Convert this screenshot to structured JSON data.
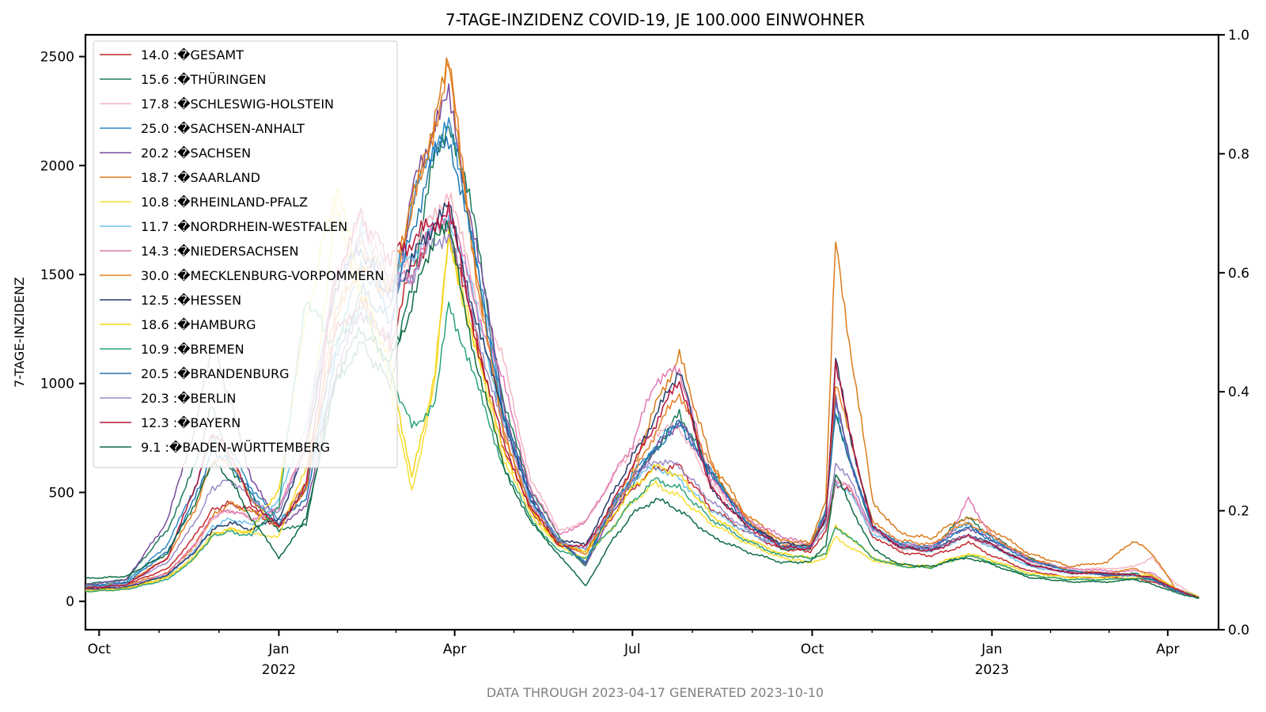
{
  "chart_data": {
    "type": "line",
    "title": "7-TAGE-INZIDENZ COVID-19, JE 100.000 EINWOHNER",
    "ylabel": "7-TAGE-INZIDENZ",
    "footer": "DATA THROUGH 2023-04-17 GENERATED 2023-10-10",
    "ylim": [
      -130,
      2600
    ],
    "xlim": [
      "2021-09-24",
      "2023-04-27"
    ],
    "y_ticks": [
      0,
      500,
      1000,
      1500,
      2000,
      2500
    ],
    "y2lim": [
      0,
      1
    ],
    "y2_ticks": [
      "0.0",
      "0.2",
      "0.4",
      "0.6",
      "0.8",
      "1.0"
    ],
    "x_ticks": [
      {
        "date": "2021-10-01",
        "label": "Oct",
        "sub": ""
      },
      {
        "date": "2022-01-01",
        "label": "Jan",
        "sub": "2022"
      },
      {
        "date": "2022-04-01",
        "label": "Apr",
        "sub": ""
      },
      {
        "date": "2022-07-01",
        "label": "Jul",
        "sub": ""
      },
      {
        "date": "2022-10-01",
        "label": "Oct",
        "sub": ""
      },
      {
        "date": "2023-01-01",
        "label": "Jan",
        "sub": "2023"
      },
      {
        "date": "2023-04-01",
        "label": "Apr",
        "sub": ""
      }
    ],
    "legend_position": "top-left",
    "grid": false,
    "shared_x": [
      "2021-09-24",
      "2021-10-15",
      "2021-11-05",
      "2021-11-19",
      "2021-11-28",
      "2021-12-07",
      "2021-12-18",
      "2022-01-01",
      "2022-01-15",
      "2022-01-30",
      "2022-02-12",
      "2022-02-27",
      "2022-03-10",
      "2022-03-22",
      "2022-03-29",
      "2022-04-12",
      "2022-04-26",
      "2022-05-10",
      "2022-05-24",
      "2022-06-07",
      "2022-06-20",
      "2022-07-01",
      "2022-07-13",
      "2022-07-25",
      "2022-08-10",
      "2022-08-28",
      "2022-09-15",
      "2022-09-30",
      "2022-10-08",
      "2022-10-13",
      "2022-10-20",
      "2022-11-01",
      "2022-11-15",
      "2022-12-01",
      "2022-12-12",
      "2022-12-20",
      "2023-01-01",
      "2023-01-20",
      "2023-02-10",
      "2023-03-01",
      "2023-03-15",
      "2023-03-24",
      "2023-04-05",
      "2023-04-17"
    ],
    "series": [
      {
        "name": "14.0 :�GESAMT",
        "color": "#c1272d",
        "values": [
          65,
          78,
          150,
          300,
          420,
          450,
          420,
          340,
          520,
          1230,
          1380,
          1170,
          1540,
          1690,
          1750,
          1200,
          700,
          420,
          260,
          230,
          380,
          520,
          610,
          620,
          430,
          320,
          240,
          230,
          320,
          540,
          520,
          300,
          225,
          210,
          240,
          270,
          210,
          140,
          110,
          110,
          105,
          90,
          50,
          15
        ]
      },
      {
        "name": "15.6 :�THÜRINGEN",
        "color": "#1b7a5a",
        "values": [
          80,
          100,
          330,
          620,
          900,
          620,
          480,
          320,
          360,
          1010,
          1180,
          1000,
          1460,
          2050,
          2220,
          1700,
          900,
          520,
          300,
          160,
          450,
          540,
          700,
          860,
          600,
          380,
          240,
          240,
          400,
          880,
          640,
          340,
          250,
          230,
          350,
          380,
          300,
          200,
          140,
          120,
          130,
          100,
          50,
          15
        ]
      },
      {
        "name": "17.8 :�SCHLESWIG-HOLSTEIN",
        "color": "#f4b6c2",
        "values": [
          50,
          60,
          120,
          240,
          380,
          420,
          380,
          420,
          760,
          1420,
          1780,
          1500,
          1580,
          1800,
          1880,
          1400,
          1100,
          560,
          330,
          360,
          560,
          700,
          780,
          800,
          540,
          380,
          280,
          260,
          380,
          560,
          520,
          320,
          240,
          230,
          280,
          300,
          250,
          180,
          150,
          150,
          160,
          200,
          80,
          20
        ]
      },
      {
        "name": "25.0 :�SACHSEN-ANHALT",
        "color": "#2d8ac4",
        "values": [
          70,
          90,
          260,
          520,
          760,
          700,
          520,
          370,
          520,
          1170,
          1530,
          1350,
          1820,
          2120,
          2180,
          1600,
          850,
          480,
          280,
          170,
          430,
          580,
          720,
          830,
          600,
          370,
          250,
          260,
          420,
          900,
          660,
          340,
          270,
          250,
          320,
          360,
          290,
          190,
          140,
          120,
          120,
          100,
          50,
          15
        ]
      },
      {
        "name": "20.2 :�SACHSEN",
        "color": "#7a4b9c",
        "values": [
          75,
          100,
          370,
          800,
          1190,
          920,
          560,
          350,
          430,
          1050,
          1330,
          1200,
          1870,
          2200,
          2300,
          1650,
          900,
          480,
          290,
          170,
          390,
          560,
          700,
          830,
          590,
          370,
          250,
          260,
          410,
          920,
          660,
          340,
          260,
          240,
          310,
          340,
          280,
          190,
          140,
          120,
          120,
          100,
          50,
          15
        ]
      },
      {
        "name": "18.7 :�SAARLAND",
        "color": "#d97b1a",
        "values": [
          60,
          75,
          130,
          260,
          390,
          450,
          410,
          350,
          540,
          1280,
          1550,
          1400,
          1820,
          2200,
          2470,
          1500,
          780,
          420,
          270,
          230,
          420,
          600,
          900,
          1130,
          650,
          400,
          280,
          270,
          470,
          1650,
          1200,
          460,
          310,
          290,
          360,
          390,
          330,
          220,
          160,
          180,
          280,
          220,
          60,
          15
        ]
      },
      {
        "name": "10.8 :�RHEINLAND-PFALZ",
        "color": "#f7de33",
        "values": [
          45,
          55,
          110,
          210,
          310,
          330,
          310,
          300,
          620,
          1800,
          1400,
          1000,
          500,
          1000,
          1700,
          1150,
          650,
          400,
          250,
          200,
          330,
          460,
          540,
          480,
          360,
          270,
          200,
          180,
          200,
          300,
          250,
          190,
          160,
          155,
          190,
          210,
          180,
          120,
          100,
          100,
          110,
          100,
          60,
          20
        ]
      },
      {
        "name": "11.7 :�NORDRHEIN-WESTFALEN",
        "color": "#6ec2ec",
        "values": [
          60,
          70,
          120,
          230,
          340,
          380,
          350,
          460,
          820,
          1450,
          1700,
          1460,
          1590,
          1700,
          1780,
          1350,
          820,
          470,
          280,
          240,
          420,
          560,
          620,
          560,
          420,
          320,
          250,
          250,
          370,
          550,
          500,
          310,
          250,
          230,
          270,
          300,
          250,
          160,
          130,
          130,
          120,
          110,
          55,
          18
        ]
      },
      {
        "name": "14.3 :�NIEDERSACHSEN",
        "color": "#e07bb4",
        "values": [
          55,
          65,
          130,
          260,
          390,
          420,
          380,
          420,
          740,
          1500,
          1760,
          1470,
          1500,
          1730,
          1800,
          1350,
          1000,
          520,
          310,
          360,
          560,
          720,
          1020,
          1060,
          560,
          380,
          300,
          260,
          380,
          560,
          520,
          330,
          260,
          250,
          320,
          470,
          300,
          190,
          150,
          140,
          140,
          130,
          60,
          18
        ]
      },
      {
        "name": "30.0 :�MECKLENBURG-VORPOMMERN",
        "color": "#e67e22",
        "values": [
          65,
          85,
          200,
          420,
          650,
          640,
          470,
          340,
          520,
          1350,
          1650,
          1450,
          1800,
          2200,
          2470,
          1500,
          780,
          430,
          280,
          210,
          400,
          570,
          780,
          960,
          620,
          380,
          260,
          260,
          400,
          1000,
          760,
          360,
          280,
          260,
          330,
          360,
          300,
          200,
          140,
          130,
          150,
          120,
          55,
          15
        ]
      },
      {
        "name": "12.5 :�HESSEN",
        "color": "#243a6b",
        "values": [
          55,
          65,
          120,
          230,
          330,
          360,
          330,
          380,
          700,
          1450,
          1620,
          1400,
          1560,
          1750,
          1800,
          1300,
          850,
          460,
          280,
          260,
          480,
          660,
          850,
          1070,
          520,
          350,
          270,
          250,
          380,
          1100,
          780,
          340,
          250,
          240,
          280,
          310,
          260,
          170,
          130,
          130,
          120,
          110,
          55,
          18
        ]
      },
      {
        "name": "18.6 :�HAMBURG",
        "color": "#f5d414",
        "values": [
          50,
          60,
          110,
          200,
          300,
          330,
          320,
          520,
          1300,
          1900,
          1450,
          1100,
          560,
          1050,
          1660,
          1150,
          700,
          420,
          260,
          230,
          380,
          520,
          620,
          580,
          400,
          290,
          220,
          200,
          220,
          340,
          300,
          200,
          170,
          160,
          200,
          220,
          190,
          130,
          110,
          110,
          120,
          120,
          60,
          20
        ]
      },
      {
        "name": "10.9 :�BREMEN",
        "color": "#2aa37a",
        "values": [
          45,
          55,
          100,
          200,
          300,
          320,
          300,
          440,
          1400,
          1160,
          1370,
          1050,
          800,
          900,
          1380,
          1000,
          620,
          380,
          230,
          200,
          330,
          460,
          560,
          520,
          380,
          280,
          210,
          200,
          220,
          340,
          300,
          200,
          160,
          155,
          190,
          210,
          180,
          120,
          100,
          100,
          105,
          100,
          55,
          18
        ]
      },
      {
        "name": "20.5 :�BRANDENBURG",
        "color": "#1f77b4",
        "values": [
          65,
          85,
          230,
          470,
          690,
          640,
          490,
          350,
          480,
          1100,
          1430,
          1280,
          1700,
          2050,
          2150,
          1550,
          850,
          470,
          280,
          180,
          420,
          560,
          700,
          820,
          590,
          360,
          250,
          250,
          400,
          880,
          650,
          340,
          260,
          240,
          310,
          340,
          280,
          190,
          140,
          120,
          120,
          100,
          50,
          15
        ]
      },
      {
        "name": "20.3 :�BERLIN",
        "color": "#9b8ac6",
        "values": [
          60,
          80,
          180,
          360,
          520,
          560,
          470,
          400,
          720,
          1480,
          1650,
          1400,
          1500,
          1650,
          1700,
          1250,
          800,
          450,
          280,
          240,
          420,
          560,
          650,
          620,
          460,
          330,
          250,
          240,
          340,
          640,
          560,
          330,
          260,
          240,
          280,
          300,
          260,
          170,
          130,
          130,
          120,
          110,
          55,
          18
        ]
      },
      {
        "name": "12.3 :�BAYERN",
        "color": "#b5153a",
        "values": [
          60,
          75,
          200,
          520,
          780,
          680,
          450,
          340,
          540,
          1500,
          1760,
          1580,
          1650,
          1750,
          1800,
          1200,
          720,
          430,
          260,
          250,
          440,
          620,
          820,
          1020,
          520,
          350,
          250,
          240,
          380,
          1090,
          780,
          340,
          250,
          230,
          270,
          300,
          260,
          170,
          130,
          130,
          120,
          110,
          55,
          18
        ]
      },
      {
        "name": "9.1 :�BADEN-WÜRTTEMBERG",
        "color": "#0e6b42",
        "values": [
          105,
          115,
          220,
          450,
          640,
          560,
          380,
          200,
          380,
          1020,
          1250,
          1100,
          1350,
          1700,
          1700,
          1100,
          620,
          360,
          220,
          70,
          270,
          400,
          470,
          420,
          300,
          230,
          180,
          180,
          260,
          580,
          450,
          240,
          170,
          160,
          190,
          200,
          170,
          110,
          90,
          90,
          100,
          80,
          40,
          15
        ]
      }
    ]
  }
}
